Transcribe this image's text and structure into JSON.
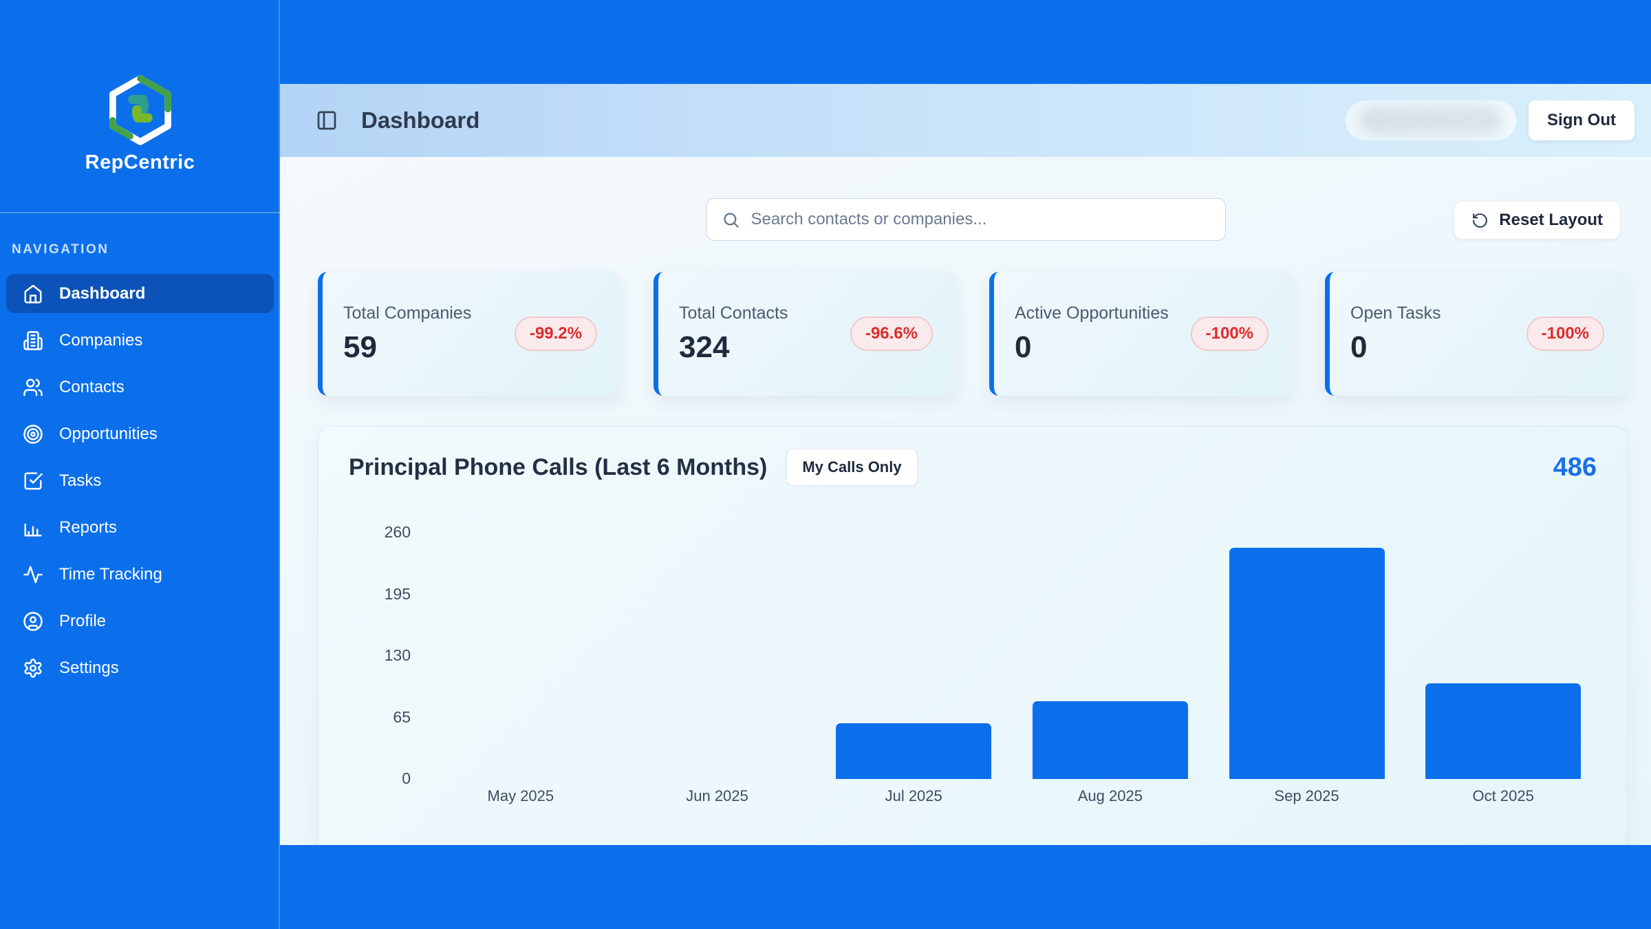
{
  "app": {
    "brand": "RepCentric"
  },
  "sidebar": {
    "section_label": "NAVIGATION",
    "items": [
      {
        "label": "Dashboard",
        "icon": "home",
        "active": true
      },
      {
        "label": "Companies",
        "icon": "building",
        "active": false
      },
      {
        "label": "Contacts",
        "icon": "users",
        "active": false
      },
      {
        "label": "Opportunities",
        "icon": "target",
        "active": false
      },
      {
        "label": "Tasks",
        "icon": "check-square",
        "active": false
      },
      {
        "label": "Reports",
        "icon": "bar-chart",
        "active": false
      },
      {
        "label": "Time Tracking",
        "icon": "activity",
        "active": false
      },
      {
        "label": "Profile",
        "icon": "user-circle",
        "active": false
      },
      {
        "label": "Settings",
        "icon": "gear",
        "active": false
      }
    ]
  },
  "header": {
    "title": "Dashboard",
    "sign_out_label": "Sign Out"
  },
  "toolbar": {
    "search_placeholder": "Search contacts or companies...",
    "reset_label": "Reset Layout"
  },
  "stats": [
    {
      "label": "Total Companies",
      "value": "59",
      "change": "-99.2%"
    },
    {
      "label": "Total Contacts",
      "value": "324",
      "change": "-96.6%"
    },
    {
      "label": "Active Opportunities",
      "value": "0",
      "change": "-100%"
    },
    {
      "label": "Open Tasks",
      "value": "0",
      "change": "-100%"
    }
  ],
  "chart": {
    "title": "Principal Phone Calls (Last 6 Months)",
    "filter_label": "My Calls Only",
    "total": "486"
  },
  "chart_data": {
    "type": "bar",
    "title": "Principal Phone Calls (Last 6 Months)",
    "categories": [
      "May 2025",
      "Jun 2025",
      "Jul 2025",
      "Aug 2025",
      "Sep 2025",
      "Oct 2025"
    ],
    "values": [
      0,
      0,
      59,
      82,
      244,
      101
    ],
    "total": 486,
    "yticks": [
      0,
      65,
      130,
      195,
      260
    ],
    "ylim": [
      0,
      260
    ],
    "xlabel": "",
    "ylabel": "",
    "grid": false,
    "legend": false,
    "bar_color": "#0B6FEB"
  },
  "colors": {
    "accent_blue": "#0B6FEB",
    "active_nav": "#0B53B8",
    "negative_red": "#E02B2B",
    "badge_bg": "#FAEAEC",
    "chart_total_blue": "#1B6FE6"
  }
}
